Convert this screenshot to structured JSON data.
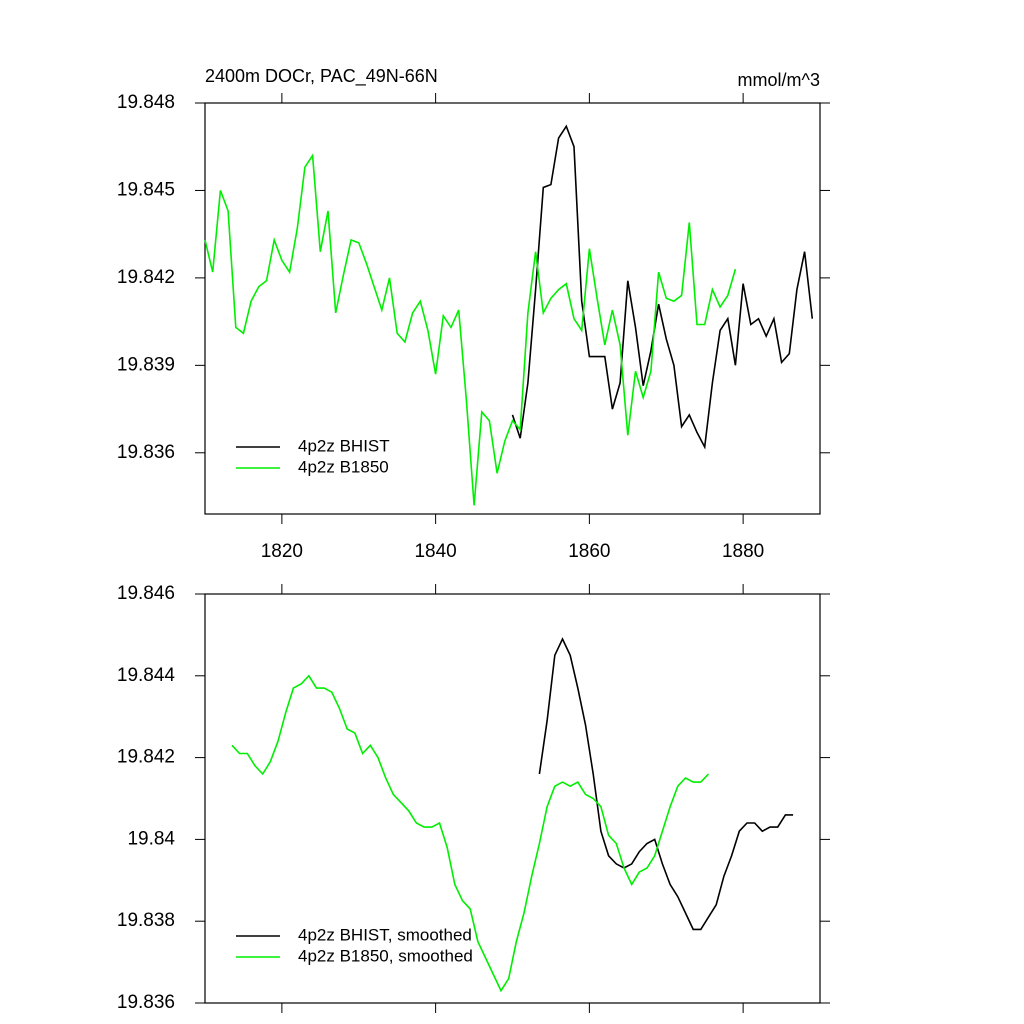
{
  "chart_data": [
    {
      "type": "line",
      "title": "2400m DOCr, PAC_49N-66N",
      "units": "mmol/m^3",
      "xlim": [
        1810,
        1890
      ],
      "xticks": [
        1820,
        1840,
        1860,
        1880
      ],
      "ylim": [
        19.8339,
        19.848
      ],
      "yticks": [
        19.836,
        19.839,
        19.842,
        19.845,
        19.848
      ],
      "legend": "lower left",
      "series": [
        {
          "name": "4p2z BHIST",
          "color": "#000000",
          "x": [
            1850,
            1851,
            1852,
            1853,
            1854,
            1855,
            1856,
            1857,
            1858,
            1859,
            1860,
            1861,
            1862,
            1863,
            1864,
            1865,
            1866,
            1867,
            1868,
            1869,
            1870,
            1871,
            1872,
            1873,
            1874,
            1875,
            1876,
            1877,
            1878,
            1879,
            1880,
            1881,
            1882,
            1883,
            1884,
            1885,
            1886,
            1887,
            1888,
            1889
          ],
          "values": [
            19.8373,
            19.8365,
            19.8384,
            19.8416,
            19.8451,
            19.8452,
            19.8468,
            19.8472,
            19.8465,
            19.8412,
            19.8393,
            19.8393,
            19.8393,
            19.8375,
            19.8384,
            19.8419,
            19.8403,
            19.8383,
            19.8395,
            19.8411,
            19.8399,
            19.839,
            19.8369,
            19.8373,
            19.8367,
            19.8362,
            19.8384,
            19.8402,
            19.8406,
            19.839,
            19.8418,
            19.8404,
            19.8406,
            19.84,
            19.8406,
            19.8391,
            19.8394,
            19.8416,
            19.8429,
            19.8406
          ]
        },
        {
          "name": "4p2z B1850",
          "color": "#00ee00",
          "x": [
            1810,
            1811,
            1812,
            1813,
            1814,
            1815,
            1816,
            1817,
            1818,
            1819,
            1820,
            1821,
            1822,
            1823,
            1824,
            1825,
            1826,
            1827,
            1828,
            1829,
            1830,
            1831,
            1832,
            1833,
            1834,
            1835,
            1836,
            1837,
            1838,
            1839,
            1840,
            1841,
            1842,
            1843,
            1844,
            1845,
            1846,
            1847,
            1848,
            1849,
            1850,
            1851,
            1852,
            1853,
            1854,
            1855,
            1856,
            1857,
            1858,
            1859,
            1860,
            1861,
            1862,
            1863,
            1864,
            1865,
            1866,
            1867,
            1868,
            1869,
            1870,
            1871,
            1872,
            1873,
            1874,
            1875,
            1876,
            1877,
            1878,
            1879
          ],
          "values": [
            19.8433,
            19.8422,
            19.845,
            19.8443,
            19.8403,
            19.8401,
            19.8412,
            19.8417,
            19.8419,
            19.8433,
            19.8426,
            19.8422,
            19.8437,
            19.8458,
            19.8462,
            19.8429,
            19.8443,
            19.8408,
            19.8421,
            19.8433,
            19.8432,
            19.8425,
            19.8417,
            19.8409,
            19.842,
            19.8401,
            19.8398,
            19.8408,
            19.8412,
            19.8402,
            19.8387,
            19.8407,
            19.8403,
            19.8409,
            19.8378,
            19.8342,
            19.8374,
            19.8371,
            19.8353,
            19.8364,
            19.8371,
            19.8368,
            19.8408,
            19.8429,
            19.8408,
            19.8413,
            19.8416,
            19.8418,
            19.8406,
            19.8402,
            19.843,
            19.8413,
            19.8397,
            19.8409,
            19.8397,
            19.8366,
            19.8388,
            19.8379,
            19.8388,
            19.8422,
            19.8413,
            19.8412,
            19.8414,
            19.8439,
            19.8404,
            19.8404,
            19.8416,
            19.841,
            19.8414,
            19.8423
          ]
        }
      ]
    },
    {
      "type": "line",
      "xlim": [
        1810,
        1890
      ],
      "xticks": [
        1820,
        1840,
        1860,
        1880
      ],
      "xtick_labels": false,
      "ylim": [
        19.836,
        19.846
      ],
      "yticks": [
        19.836,
        19.838,
        19.84,
        19.842,
        19.844,
        19.846
      ],
      "legend": "lower left",
      "series": [
        {
          "name": "4p2z BHIST, smoothed",
          "color": "#000000",
          "x": [
            1853.5,
            1854.5,
            1855.5,
            1856.5,
            1857.5,
            1858.5,
            1859.5,
            1860.5,
            1861.5,
            1862.5,
            1863.5,
            1864.5,
            1865.5,
            1866.5,
            1867.5,
            1868.5,
            1869.5,
            1870.5,
            1871.5,
            1872.5,
            1873.5,
            1874.5,
            1875.5,
            1876.5,
            1877.5,
            1878.5,
            1879.5,
            1880.5,
            1881.5,
            1882.5,
            1883.5,
            1884.5,
            1885.5,
            1886.5
          ],
          "values": [
            19.8416,
            19.8429,
            19.8445,
            19.8449,
            19.8445,
            19.8437,
            19.8428,
            19.8416,
            19.8402,
            19.8396,
            19.8394,
            19.8393,
            19.8394,
            19.8397,
            19.8399,
            19.84,
            19.8394,
            19.8389,
            19.8386,
            19.8382,
            19.8378,
            19.8378,
            19.8381,
            19.8384,
            19.8391,
            19.8396,
            19.8402,
            19.8404,
            19.8404,
            19.8402,
            19.8403,
            19.8403,
            19.8406,
            19.8406
          ]
        },
        {
          "name": "4p2z B1850, smoothed",
          "color": "#00ee00",
          "x": [
            1813.5,
            1814.5,
            1815.5,
            1816.5,
            1817.5,
            1818.5,
            1819.5,
            1820.5,
            1821.5,
            1822.5,
            1823.5,
            1824.5,
            1825.5,
            1826.5,
            1827.5,
            1828.5,
            1829.5,
            1830.5,
            1831.5,
            1832.5,
            1833.5,
            1834.5,
            1835.5,
            1836.5,
            1837.5,
            1838.5,
            1839.5,
            1840.5,
            1841.5,
            1842.5,
            1843.5,
            1844.5,
            1845.5,
            1846.5,
            1847.5,
            1848.5,
            1849.5,
            1850.5,
            1851.5,
            1852.5,
            1853.5,
            1854.5,
            1855.5,
            1856.5,
            1857.5,
            1858.5,
            1859.5,
            1860.5,
            1861.5,
            1862.5,
            1863.5,
            1864.5,
            1865.5,
            1866.5,
            1867.5,
            1868.5,
            1869.5,
            1870.5,
            1871.5,
            1872.5,
            1873.5,
            1874.5,
            1875.5
          ],
          "values": [
            19.8423,
            19.8421,
            19.8421,
            19.8418,
            19.8416,
            19.8419,
            19.8424,
            19.8431,
            19.8437,
            19.8438,
            19.844,
            19.8437,
            19.8437,
            19.8436,
            19.8432,
            19.8427,
            19.8426,
            19.8421,
            19.8423,
            19.842,
            19.8415,
            19.8411,
            19.8409,
            19.8407,
            19.8404,
            19.8403,
            19.8403,
            19.8404,
            19.8398,
            19.8389,
            19.8385,
            19.8383,
            19.8375,
            19.8371,
            19.8367,
            19.8363,
            19.8366,
            19.8375,
            19.8382,
            19.8391,
            19.8399,
            19.8408,
            19.8413,
            19.8414,
            19.8413,
            19.8414,
            19.8411,
            19.841,
            19.8408,
            19.8401,
            19.8399,
            19.8393,
            19.8389,
            19.8392,
            19.8393,
            19.8396,
            19.8402,
            19.8408,
            19.8413,
            19.8415,
            19.8414,
            19.8414,
            19.8416
          ]
        }
      ]
    }
  ]
}
